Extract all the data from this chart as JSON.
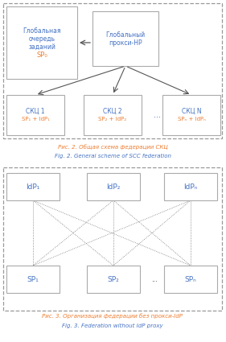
{
  "bg_color": "#ffffff",
  "diagram_bg": "#ffffff",
  "outer_border_color": "#888888",
  "box_bg": "#ffffff",
  "box_edge": "#aaaaaa",
  "text_color_main": "#4472c4",
  "text_color_sub": "#ed7d31",
  "caption_color1": "#ed7d31",
  "caption_color2": "#4472c4",
  "arrow_color": "#555555",
  "fig2_caption_ru": "Рис. 2. Общая схема федерации СКЦ",
  "fig2_caption_en": "Fig. 2. General scheme of SCC federation",
  "fig3_caption_ru": "Рис. 3. Организация федерации без прокси-IdP",
  "fig3_caption_en": "Fig. 3. Federation without IdP proxy",
  "box1_line1": "Глобальная",
  "box1_line2": "очередь",
  "box1_line3": "заданий",
  "box1_line4": "SP₀",
  "box2_line1": "Глобальный",
  "box2_line2": "прокси-HP",
  "skc1_line1": "СКЦ 1",
  "skc1_line2": "SP₁ + IdP₁",
  "skc2_line1": "СКЦ 2",
  "skc2_line2": "SP₂ + IdP₂",
  "skcN_line1": "СКЦ N",
  "skcN_line2": "SPₙ + IdPₙ",
  "dots": "...",
  "idp1": "IdP₁",
  "idp2": "IdP₂",
  "idpN": "IdPₙ",
  "sp1": "SP₁",
  "sp2": "SP₂",
  "spN": "SPₙ"
}
